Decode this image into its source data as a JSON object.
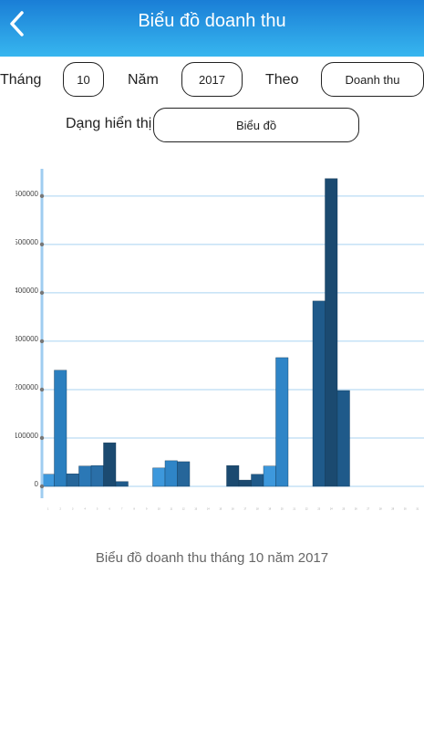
{
  "header": {
    "title": "Biểu đồ doanh thu"
  },
  "form": {
    "month_label": "Tháng",
    "month_value": "10",
    "year_label": "Năm",
    "year_value": "2017",
    "by_label": "Theo",
    "by_value": "Doanh thu",
    "display_label": "Dạng hiển thị",
    "display_value": "Biểu đồ"
  },
  "chart_data": {
    "type": "bar",
    "title": "Biểu đồ doanh thu tháng 10 năm 2017",
    "categories": [
      "1",
      "2",
      "3",
      "4",
      "5",
      "6",
      "7",
      "8",
      "9",
      "10",
      "11",
      "12",
      "13",
      "14",
      "15",
      "16",
      "17",
      "18",
      "19",
      "20",
      "21",
      "22",
      "23",
      "24",
      "25",
      "26",
      "27",
      "28",
      "29",
      "30",
      "31"
    ],
    "values": [
      25000,
      240000,
      26000,
      42000,
      43000,
      90000,
      10000,
      0,
      0,
      38000,
      53000,
      51000,
      0,
      0,
      0,
      43000,
      13000,
      25000,
      42000,
      266000,
      0,
      0,
      383000,
      636000,
      198000,
      0,
      0,
      0,
      0,
      0,
      0
    ],
    "colors": [
      "#3d98dc",
      "#2b7fbf",
      "#26669a",
      "#2b78b6",
      "#2a6fa8",
      "#1b4a70",
      "#1f5a8a",
      "#2b78b6",
      "#2b78b6",
      "#3d98dc",
      "#2f85c7",
      "#26669a",
      "#2b78b6",
      "#2b78b6",
      "#2b78b6",
      "#1b4a70",
      "#1b4a70",
      "#1f5a8a",
      "#3d98dc",
      "#2f85c7",
      "#2b78b6",
      "#2b78b6",
      "#1f5a8a",
      "#1b4a70",
      "#1f5a8a",
      "#2b78b6",
      "#2b78b6",
      "#2b78b6",
      "#2b78b6",
      "#2b78b6",
      "#2b78b6"
    ],
    "ylim": [
      0,
      660000
    ],
    "yticks": [
      0,
      100000,
      200000,
      300000,
      400000,
      500000,
      600000
    ],
    "grid": true
  }
}
